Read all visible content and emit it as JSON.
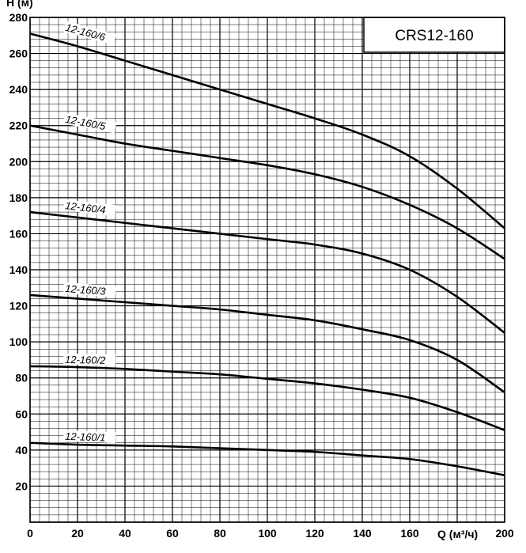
{
  "chart_data": {
    "type": "line",
    "title": "CRS12-160",
    "xlabel": "Q (м³/ч)",
    "ylabel": "H (м)",
    "xlim": [
      0,
      200
    ],
    "ylim": [
      0,
      280
    ],
    "x_ticks": [
      "0",
      "20",
      "40",
      "60",
      "80",
      "100",
      "120",
      "140",
      "160",
      "200"
    ],
    "y_ticks": [
      "20",
      "40",
      "60",
      "80",
      "100",
      "120",
      "140",
      "160",
      "180",
      "200",
      "220",
      "240",
      "260",
      "280"
    ],
    "grid": true,
    "series": [
      {
        "name": "12-160/6",
        "x": [
          0,
          20,
          40,
          60,
          80,
          100,
          120,
          140,
          160,
          180,
          200
        ],
        "values": [
          271,
          264,
          256,
          248,
          240,
          232,
          224,
          215,
          203,
          185,
          163
        ]
      },
      {
        "name": "12-160/5",
        "x": [
          0,
          20,
          40,
          60,
          80,
          100,
          120,
          140,
          160,
          180,
          200
        ],
        "values": [
          220,
          215,
          210,
          206,
          202,
          198,
          193,
          186,
          176,
          163,
          146
        ]
      },
      {
        "name": "12-160/4",
        "x": [
          0,
          20,
          40,
          60,
          80,
          100,
          120,
          140,
          160,
          180,
          200
        ],
        "values": [
          172,
          169,
          166,
          163,
          160,
          157,
          154,
          149,
          140,
          125,
          105
        ]
      },
      {
        "name": "12-160/3",
        "x": [
          0,
          20,
          40,
          60,
          80,
          100,
          120,
          140,
          160,
          180,
          200
        ],
        "values": [
          126,
          124,
          122,
          120,
          118,
          115,
          112,
          107,
          101,
          90,
          72
        ]
      },
      {
        "name": "12-160/2",
        "x": [
          0,
          20,
          40,
          60,
          80,
          100,
          120,
          140,
          160,
          180,
          200
        ],
        "values": [
          86.5,
          86,
          85,
          83.5,
          82,
          79.5,
          77,
          73.5,
          69,
          61,
          51
        ]
      },
      {
        "name": "12-160/1",
        "x": [
          0,
          20,
          40,
          60,
          80,
          100,
          120,
          140,
          160,
          180,
          200
        ],
        "values": [
          44,
          43,
          42.5,
          42,
          41,
          40,
          39,
          37,
          35,
          31,
          26
        ]
      }
    ]
  }
}
